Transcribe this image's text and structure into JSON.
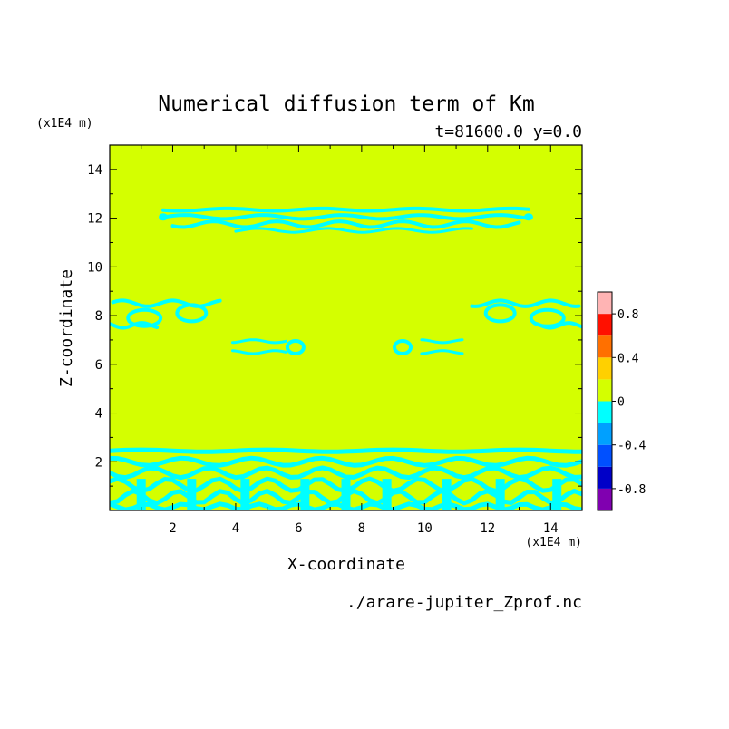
{
  "chart_data": {
    "type": "heatmap",
    "title": "Numerical diffusion term of Km",
    "subtitle": "t=81600.0 y=0.0",
    "xlabel": "X-coordinate",
    "ylabel": "Z-coordinate",
    "x_unit": "(x1E4 m)",
    "y_unit": "(x1E4 m)",
    "xlim": [
      0,
      15
    ],
    "ylim": [
      0,
      15
    ],
    "x_ticks": [
      "2",
      "4",
      "6",
      "8",
      "10",
      "12",
      "14"
    ],
    "y_ticks": [
      "2",
      "4",
      "6",
      "8",
      "10",
      "12",
      "14"
    ],
    "background_value_band": "0 to 0.2",
    "background_color": "#d4ff00",
    "feature_color": "#00ffff",
    "colorbar": {
      "labels": [
        "0.8",
        "0.4",
        "0",
        "-0.4",
        "-0.8"
      ],
      "levels": [
        -1.0,
        -0.8,
        -0.6,
        -0.4,
        -0.2,
        0.0,
        0.2,
        0.4,
        0.6,
        0.8,
        1.0
      ],
      "colors": [
        "#8000b0",
        "#0000c8",
        "#0050ff",
        "#00a0ff",
        "#00ffff",
        "#d4ff00",
        "#ffd000",
        "#ff7000",
        "#ff1000",
        "#ffb4b4"
      ]
    },
    "features": [
      {
        "label": "upper band",
        "x_range": [
          1.6,
          13.5
        ],
        "z_range": [
          11.5,
          12.5
        ],
        "value_band": "-0.2 to 0"
      },
      {
        "label": "left eddies",
        "x_range": [
          0,
          3.5
        ],
        "z_range": [
          7.5,
          8.5
        ],
        "value_band": "-0.2 to 0"
      },
      {
        "label": "right eddies",
        "x_range": [
          11.5,
          15
        ],
        "z_range": [
          7.5,
          8.5
        ],
        "value_band": "-0.2 to 0"
      },
      {
        "label": "middle-left eddies",
        "x_range": [
          3.8,
          6.3
        ],
        "z_range": [
          6.3,
          7.1
        ],
        "value_band": "-0.2 to 0"
      },
      {
        "label": "middle-right eddies",
        "x_range": [
          8.9,
          11.2
        ],
        "z_range": [
          6.3,
          7.1
        ],
        "value_band": "-0.2 to 0"
      },
      {
        "label": "lower layer",
        "x_range": [
          0,
          15
        ],
        "z_range": [
          0,
          2.6
        ],
        "value_band": "-0.2 to 0"
      }
    ]
  },
  "footer": {
    "filename": "./arare-jupiter_Zprof.nc"
  }
}
